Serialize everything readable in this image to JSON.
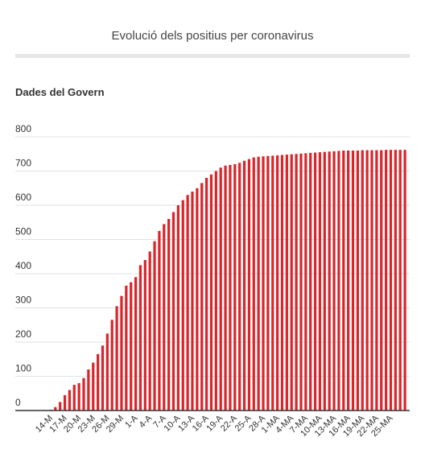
{
  "chart_data": {
    "type": "bar",
    "title": "Evolució dels positius per coronavirus",
    "subtitle": "Dades del Govern",
    "xlabel": "",
    "ylabel": "",
    "ylim": [
      0,
      800
    ],
    "yticks": [
      0,
      100,
      200,
      300,
      400,
      500,
      600,
      700,
      800
    ],
    "grid": true,
    "bar_color": "#d9262b",
    "tick_labels": [
      "14-M",
      "17-M",
      "20-M",
      "23-M",
      "26-M",
      "29-M",
      "1-A",
      "4-A",
      "7-A",
      "10-A",
      "13-A",
      "16-A",
      "19-A",
      "22-A",
      "25-A",
      "28-A",
      "1-MA",
      "4-MA",
      "7-MA",
      "10-MA",
      "13-MA",
      "16-MA",
      "19-MA",
      "22-MA",
      "25-MA"
    ],
    "tick_every": 3,
    "values": [
      2,
      10,
      25,
      45,
      60,
      75,
      80,
      95,
      120,
      140,
      165,
      190,
      225,
      265,
      305,
      335,
      365,
      375,
      390,
      425,
      440,
      465,
      495,
      525,
      545,
      560,
      580,
      600,
      615,
      630,
      640,
      650,
      665,
      680,
      690,
      700,
      710,
      716,
      718,
      720,
      724,
      730,
      735,
      740,
      742,
      743,
      744,
      745,
      746,
      747,
      748,
      749,
      750,
      751,
      752,
      753,
      754,
      755,
      756,
      757,
      758,
      759,
      760,
      760,
      760,
      760,
      761,
      761,
      761,
      761,
      761,
      762,
      762,
      762,
      762,
      762
    ]
  }
}
